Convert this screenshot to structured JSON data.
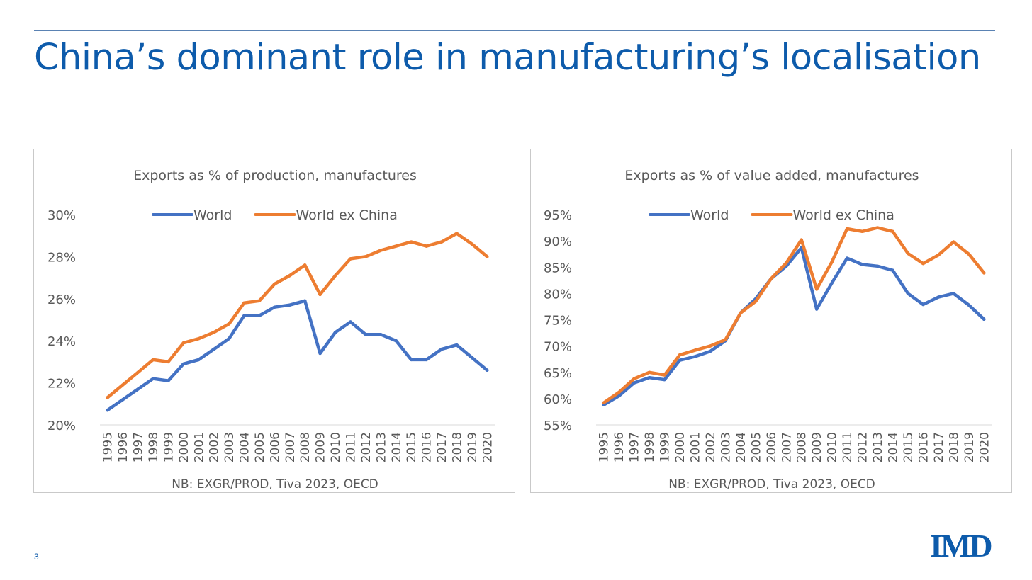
{
  "slide": {
    "title": "China’s dominant role in manufacturing’s localisation",
    "page_number": "3",
    "logo_text": "IMD",
    "accent_color": "#0d5bab"
  },
  "chart_data": [
    {
      "type": "line",
      "title": "Exports as % of production, manufactures",
      "note": "NB: EXGR/PROD, Tiva 2023, OECD",
      "xlabel": "",
      "ylabel": "",
      "ylim": [
        0.2,
        0.3
      ],
      "y_ticks": [
        0.2,
        0.22,
        0.24,
        0.26,
        0.28,
        0.3
      ],
      "y_tick_labels": [
        "20%",
        "22%",
        "24%",
        "26%",
        "28%",
        "30%"
      ],
      "legend_position": "top-center",
      "grid": false,
      "x": [
        "1995",
        "1996",
        "1997",
        "1998",
        "1999",
        "2000",
        "2001",
        "2002",
        "2003",
        "2004",
        "2005",
        "2006",
        "2007",
        "2008",
        "2009",
        "2010",
        "2011",
        "2012",
        "2013",
        "2014",
        "2015",
        "2016",
        "2017",
        "2018",
        "2019",
        "2020"
      ],
      "series": [
        {
          "name": "World",
          "color": "#4472c4",
          "values": [
            0.207,
            0.212,
            0.217,
            0.222,
            0.221,
            0.229,
            0.231,
            0.236,
            0.241,
            0.252,
            0.252,
            0.256,
            0.257,
            0.259,
            0.234,
            0.244,
            0.249,
            0.243,
            0.243,
            0.24,
            0.231,
            0.231,
            0.236,
            0.238,
            0.232,
            0.226
          ]
        },
        {
          "name": "World ex China",
          "color": "#ed7d31",
          "values": [
            0.213,
            0.219,
            0.225,
            0.231,
            0.23,
            0.239,
            0.241,
            0.244,
            0.248,
            0.258,
            0.259,
            0.267,
            0.271,
            0.276,
            0.262,
            0.271,
            0.279,
            0.28,
            0.283,
            0.285,
            0.287,
            0.285,
            0.287,
            0.291,
            0.286,
            0.28
          ]
        }
      ]
    },
    {
      "type": "line",
      "title": "Exports as % of value added, manufactures",
      "note": "NB: EXGR/PROD, Tiva 2023, OECD",
      "xlabel": "",
      "ylabel": "",
      "ylim": [
        0.55,
        0.95
      ],
      "y_ticks": [
        0.55,
        0.6,
        0.65,
        0.7,
        0.75,
        0.8,
        0.85,
        0.9,
        0.95
      ],
      "y_tick_labels": [
        "55%",
        "60%",
        "65%",
        "70%",
        "75%",
        "80%",
        "85%",
        "90%",
        "95%"
      ],
      "legend_position": "top-center",
      "grid": false,
      "x": [
        "1995",
        "1996",
        "1997",
        "1998",
        "1999",
        "2000",
        "2001",
        "2002",
        "2003",
        "2004",
        "2005",
        "2006",
        "2007",
        "2008",
        "2009",
        "2010",
        "2011",
        "2012",
        "2013",
        "2014",
        "2015",
        "2016",
        "2017",
        "2018",
        "2019",
        "2020"
      ],
      "series": [
        {
          "name": "World",
          "color": "#4472c4",
          "values": [
            0.588,
            0.605,
            0.63,
            0.64,
            0.636,
            0.673,
            0.68,
            0.69,
            0.71,
            0.763,
            0.79,
            0.828,
            0.852,
            0.887,
            0.77,
            0.82,
            0.867,
            0.855,
            0.852,
            0.844,
            0.8,
            0.779,
            0.793,
            0.8,
            0.778,
            0.751
          ]
        },
        {
          "name": "World ex China",
          "color": "#ed7d31",
          "values": [
            0.592,
            0.612,
            0.638,
            0.65,
            0.645,
            0.683,
            0.692,
            0.7,
            0.712,
            0.763,
            0.785,
            0.828,
            0.858,
            0.902,
            0.808,
            0.86,
            0.923,
            0.918,
            0.925,
            0.918,
            0.876,
            0.857,
            0.873,
            0.898,
            0.875,
            0.839
          ]
        }
      ]
    }
  ]
}
